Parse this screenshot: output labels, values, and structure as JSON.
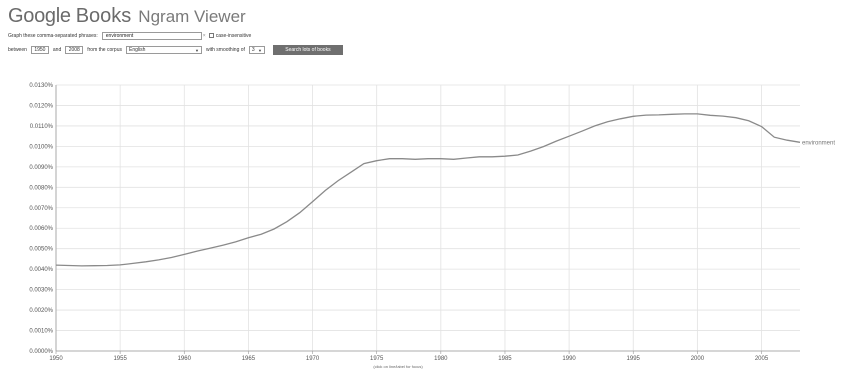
{
  "header": {
    "brand": "Google",
    "product": "Books",
    "subtitle": "Ngram Viewer"
  },
  "form": {
    "phrases_label": "Graph these comma-separated phrases:",
    "phrase_value": "environment",
    "clear_icon": "close-icon",
    "case_insensitive_label": "case-insensitive",
    "case_insensitive_checked": false,
    "between_label": "between",
    "start_year": "1950",
    "and_label": "and",
    "end_year": "2008",
    "corpus_label": "from the corpus",
    "corpus_value": "English",
    "smoothing_label": "with smoothing of",
    "smoothing_value": "3",
    "search_button": "Search lots of books"
  },
  "chart_data": {
    "type": "line",
    "xlim": [
      1950,
      2008
    ],
    "ylim": [
      0,
      0.013
    ],
    "grid": true,
    "x_ticks": [
      "1950",
      "1955",
      "1960",
      "1965",
      "1970",
      "1975",
      "1980",
      "1985",
      "1990",
      "1995",
      "2000",
      "2005"
    ],
    "y_ticks": [
      "0.0000%",
      "0.0010%",
      "0.0020%",
      "0.0030%",
      "0.0040%",
      "0.0050%",
      "0.0060%",
      "0.0070%",
      "0.0080%",
      "0.0090%",
      "0.0100%",
      "0.0110%",
      "0.0120%",
      "0.0130%"
    ],
    "footnote": "(click on line/label for focus)",
    "series": [
      {
        "name": "environment",
        "color": "#8a8a8a",
        "x": [
          1950,
          1951,
          1952,
          1953,
          1954,
          1955,
          1956,
          1957,
          1958,
          1959,
          1960,
          1961,
          1962,
          1963,
          1964,
          1965,
          1966,
          1967,
          1968,
          1969,
          1970,
          1971,
          1972,
          1973,
          1974,
          1975,
          1976,
          1977,
          1978,
          1979,
          1980,
          1981,
          1982,
          1983,
          1984,
          1985,
          1986,
          1987,
          1988,
          1989,
          1990,
          1991,
          1992,
          1993,
          1994,
          1995,
          1996,
          1997,
          1998,
          1999,
          2000,
          2001,
          2002,
          2003,
          2004,
          2005,
          2006,
          2007,
          2008
        ],
        "values": [
          0.0042,
          0.00418,
          0.00416,
          0.00417,
          0.00418,
          0.00421,
          0.00428,
          0.00436,
          0.00445,
          0.00457,
          0.00472,
          0.00488,
          0.00502,
          0.00517,
          0.00533,
          0.00553,
          0.00571,
          0.00596,
          0.00632,
          0.00676,
          0.0073,
          0.00785,
          0.00833,
          0.00874,
          0.00916,
          0.0093,
          0.0094,
          0.0094,
          0.00937,
          0.0094,
          0.0094,
          0.00937,
          0.00943,
          0.00949,
          0.00949,
          0.00952,
          0.00958,
          0.00977,
          0.00999,
          0.01026,
          0.0105,
          0.01074,
          0.011,
          0.0112,
          0.01135,
          0.01147,
          0.01153,
          0.01154,
          0.01157,
          0.01159,
          0.01159,
          0.01152,
          0.01148,
          0.0114,
          0.01125,
          0.01097,
          0.01045,
          0.0103,
          0.0102
        ]
      }
    ]
  }
}
